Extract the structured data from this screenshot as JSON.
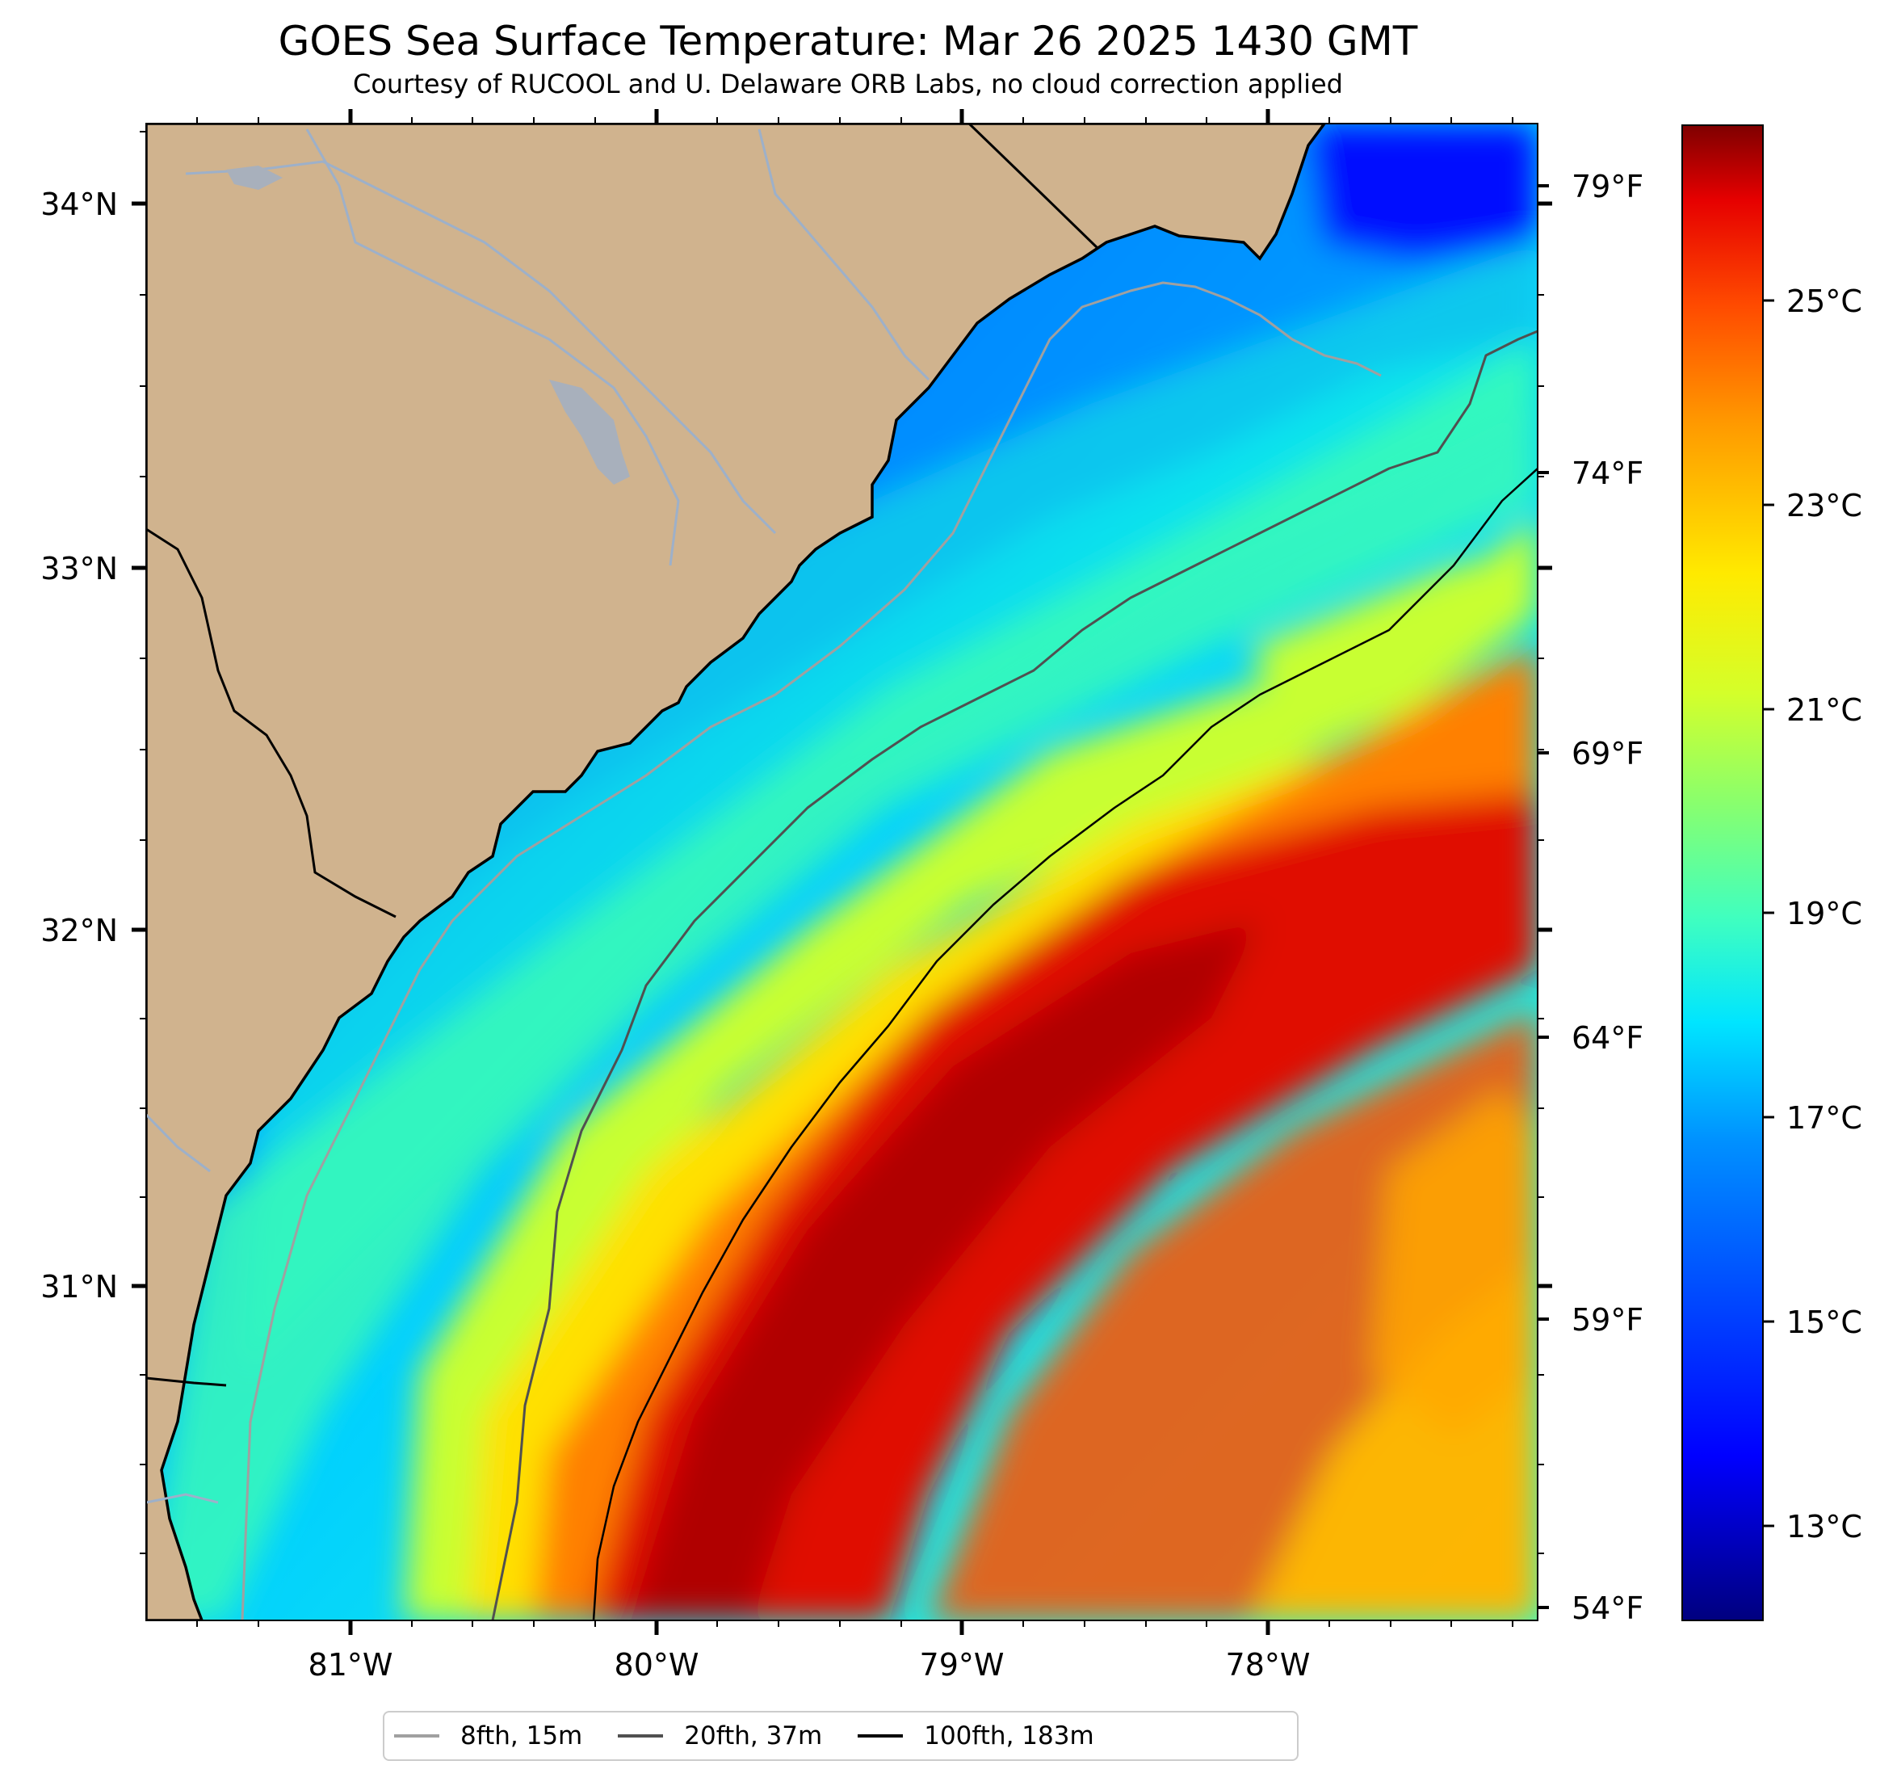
{
  "title": "GOES Sea Surface Temperature: Mar 26 2025 1430 GMT",
  "subtitle": "Courtesy of RUCOOL and U. Delaware ORB Labs, no cloud correction applied",
  "axes": {
    "lat_labels": [
      "34°N",
      "33°N",
      "32°N",
      "31°N"
    ],
    "lon_labels": [
      "81°W",
      "80°W",
      "79°W",
      "78°W"
    ],
    "f_labels": [
      "79°F",
      "74°F",
      "69°F",
      "64°F",
      "59°F",
      "54°F"
    ]
  },
  "colorbar": {
    "labels": [
      "25°C",
      "23°C",
      "21°C",
      "19°C",
      "17°C",
      "15°C",
      "13°C"
    ],
    "colors": [
      "#00007f",
      "#0000ff",
      "#0080ff",
      "#00e5ff",
      "#40ffbf",
      "#8cff6a",
      "#d4ff2a",
      "#ffea00",
      "#ff9a00",
      "#ff4a00",
      "#e60000",
      "#7f0000"
    ]
  },
  "legend": [
    {
      "label": "8fth, 15m",
      "color": "#a0a0a0"
    },
    {
      "label": "20fth, 37m",
      "color": "#505050"
    },
    {
      "label": "100fth, 183m",
      "color": "#000000"
    }
  ],
  "colors": {
    "land": "#d0b38e",
    "coast_gap": "#ffffff",
    "rivers": "#9db0c9"
  }
}
